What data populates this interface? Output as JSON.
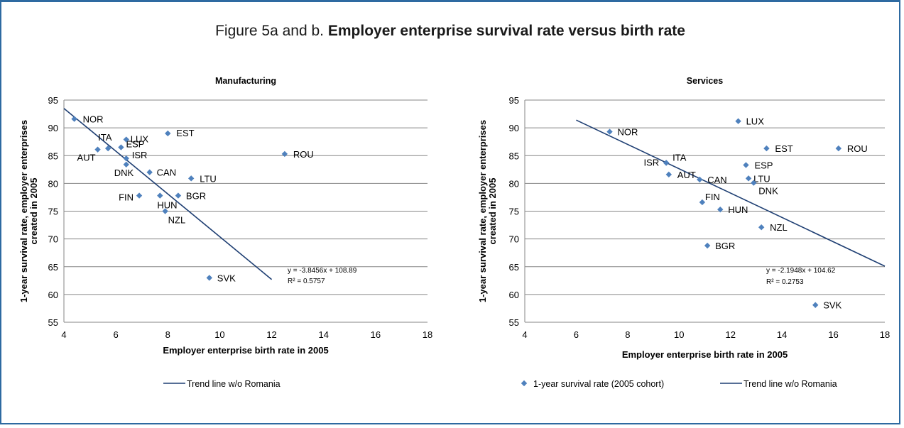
{
  "figure": {
    "title_prefix": "Figure 5a and b. ",
    "title_bold": "Employer enterprise survival rate versus birth rate"
  },
  "colors": {
    "border": "#2e6aa1",
    "marker": "#4f81bd",
    "trendline": "#1f3f73",
    "grid": "#868686"
  },
  "chart_data": [
    {
      "type": "scatter",
      "title": "Manufacturing",
      "xlabel": "Employer enterprise birth rate in 2005",
      "ylabel_lines": [
        "1-year survival rate, employer enterprises",
        "created in 2005"
      ],
      "xlim": [
        4,
        18
      ],
      "ylim": [
        55,
        95
      ],
      "xticks": [
        4,
        6,
        8,
        10,
        12,
        14,
        16,
        18
      ],
      "yticks": [
        55,
        60,
        65,
        70,
        75,
        80,
        85,
        90,
        95
      ],
      "grid": "horizontal",
      "points": [
        {
          "label": "NOR",
          "x": 4.4,
          "y": 91.6
        },
        {
          "label": "ITA",
          "x": 5.7,
          "y": 86.3
        },
        {
          "label": "AUT",
          "x": 5.3,
          "y": 86.1
        },
        {
          "label": "ESP",
          "x": 6.2,
          "y": 86.5
        },
        {
          "label": "LUX",
          "x": 6.4,
          "y": 87.9
        },
        {
          "label": "ISR",
          "x": 6.4,
          "y": 84.5
        },
        {
          "label": "DNK",
          "x": 6.4,
          "y": 83.4
        },
        {
          "label": "EST",
          "x": 8.0,
          "y": 89.0
        },
        {
          "label": "CAN",
          "x": 7.3,
          "y": 82.0
        },
        {
          "label": "LTU",
          "x": 8.9,
          "y": 80.9
        },
        {
          "label": "ROU",
          "x": 12.5,
          "y": 85.3
        },
        {
          "label": "FIN",
          "x": 6.9,
          "y": 77.8
        },
        {
          "label": "HUN",
          "x": 7.7,
          "y": 77.8
        },
        {
          "label": "BGR",
          "x": 8.4,
          "y": 77.8
        },
        {
          "label": "NZL",
          "x": 7.9,
          "y": 75.0
        },
        {
          "label": "SVK",
          "x": 9.6,
          "y": 63.0
        }
      ],
      "trendline": {
        "x": [
          4,
          12
        ],
        "y": [
          93.5,
          62.7
        ]
      },
      "equation": "y = -3.8456x + 108.89",
      "r_squared": "R² = 0.5757",
      "legend": [
        {
          "type": "line",
          "name": "Trend line w/o Romania"
        }
      ],
      "legend_placement": "bottom"
    },
    {
      "type": "scatter",
      "title": "Services",
      "xlabel": "Employer enterprise birth rate in 2005",
      "ylabel_lines": [
        "1-year survival rate, employer enterprises",
        "created in 2005"
      ],
      "xlim": [
        4,
        18
      ],
      "ylim": [
        55,
        95
      ],
      "xticks": [
        4,
        6,
        8,
        10,
        12,
        14,
        16,
        18
      ],
      "yticks": [
        55,
        60,
        65,
        70,
        75,
        80,
        85,
        90,
        95
      ],
      "grid": "horizontal",
      "points": [
        {
          "label": "NOR",
          "x": 7.3,
          "y": 89.3
        },
        {
          "label": "LUX",
          "x": 12.3,
          "y": 91.2
        },
        {
          "label": "EST",
          "x": 13.4,
          "y": 86.3
        },
        {
          "label": "ROU",
          "x": 16.2,
          "y": 86.3
        },
        {
          "label": "ISR",
          "x": 9.5,
          "y": 83.7
        },
        {
          "label": "ITA",
          "x": 9.5,
          "y": 83.7
        },
        {
          "label": "ESP",
          "x": 12.6,
          "y": 83.3
        },
        {
          "label": "AUT",
          "x": 9.6,
          "y": 81.6
        },
        {
          "label": "CAN",
          "x": 10.8,
          "y": 80.7
        },
        {
          "label": "LTU",
          "x": 12.7,
          "y": 80.9
        },
        {
          "label": "DNK",
          "x": 12.9,
          "y": 80.1
        },
        {
          "label": "FIN",
          "x": 10.9,
          "y": 76.6
        },
        {
          "label": "HUN",
          "x": 11.6,
          "y": 75.3
        },
        {
          "label": "NZL",
          "x": 13.2,
          "y": 72.1
        },
        {
          "label": "BGR",
          "x": 11.1,
          "y": 68.8
        },
        {
          "label": "SVK",
          "x": 15.3,
          "y": 58.1
        }
      ],
      "trendline": {
        "x": [
          6,
          18
        ],
        "y": [
          91.4,
          65.1
        ]
      },
      "equation": "y = -2.1948x + 104.62",
      "r_squared": "R² = 0.2753",
      "legend": [
        {
          "type": "marker",
          "name": "1-year survival rate (2005 cohort)"
        },
        {
          "type": "line",
          "name": "Trend line w/o Romania"
        }
      ],
      "legend_placement": "bottom"
    }
  ]
}
